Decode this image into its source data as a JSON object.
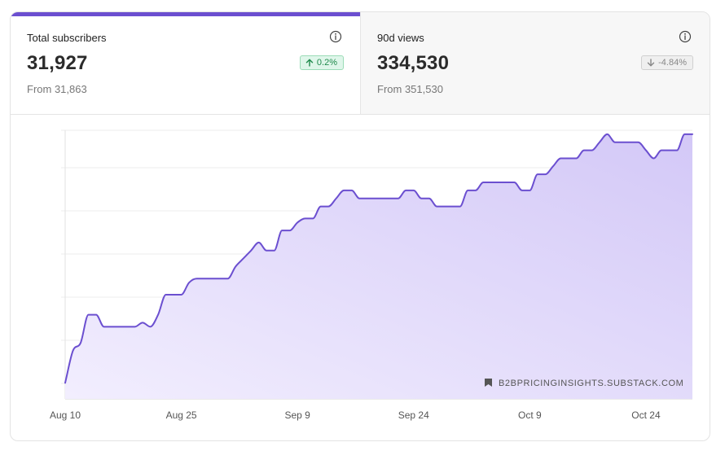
{
  "tabs": [
    {
      "label": "Total subscribers",
      "value": "31,927",
      "from": "From 31,863",
      "change": "0.2%",
      "direction": "up",
      "active": true
    },
    {
      "label": "90d views",
      "value": "334,530",
      "from": "From 351,530",
      "change": "-4.84%",
      "direction": "down",
      "active": false
    }
  ],
  "colors": {
    "accent": "#6b4fd0",
    "area_top": "#d3c8f7",
    "area_bottom": "#f2eefe",
    "badge_up_text": "#1f8a4c",
    "badge_down_text": "#888888"
  },
  "icons": {
    "info": "info-circle-icon",
    "up": "arrow-up-icon",
    "down": "arrow-down-icon",
    "publication": "bookmark-icon"
  },
  "watermark": "B2BPRICINGINSIGHTS.SUBSTACK.COM",
  "chart_data": {
    "type": "area",
    "title": "",
    "xlabel": "",
    "ylabel": "",
    "x_tick_labels": [
      "Aug 10",
      "Aug 25",
      "Sep 9",
      "Sep 24",
      "Oct 9",
      "Oct 24"
    ],
    "x_tick_day_offsets": [
      0,
      15,
      30,
      45,
      60,
      75
    ],
    "grid": "horizontal",
    "y_tick_labels_shown": false,
    "x": [
      "Aug 10",
      "Aug 11",
      "Aug 12",
      "Aug 13",
      "Aug 14",
      "Aug 15",
      "Aug 16",
      "Aug 17",
      "Aug 18",
      "Aug 19",
      "Aug 20",
      "Aug 21",
      "Aug 22",
      "Aug 23",
      "Aug 24",
      "Aug 25",
      "Aug 26",
      "Aug 27",
      "Aug 28",
      "Aug 29",
      "Aug 30",
      "Aug 31",
      "Sep 1",
      "Sep 2",
      "Sep 3",
      "Sep 4",
      "Sep 5",
      "Sep 6",
      "Sep 7",
      "Sep 8",
      "Sep 9",
      "Sep 10",
      "Sep 11",
      "Sep 12",
      "Sep 13",
      "Sep 14",
      "Sep 15",
      "Sep 16",
      "Sep 17",
      "Sep 18",
      "Sep 19",
      "Sep 20",
      "Sep 21",
      "Sep 22",
      "Sep 23",
      "Sep 24",
      "Sep 25",
      "Sep 26",
      "Sep 27",
      "Sep 28",
      "Sep 29",
      "Sep 30",
      "Oct 1",
      "Oct 2",
      "Oct 3",
      "Oct 4",
      "Oct 5",
      "Oct 6",
      "Oct 7",
      "Oct 8",
      "Oct 9",
      "Oct 10",
      "Oct 11",
      "Oct 12",
      "Oct 13",
      "Oct 14",
      "Oct 15",
      "Oct 16",
      "Oct 17",
      "Oct 18",
      "Oct 19",
      "Oct 20",
      "Oct 21",
      "Oct 22",
      "Oct 23",
      "Oct 24",
      "Oct 25",
      "Oct 26",
      "Oct 27",
      "Oct 28",
      "Oct 29",
      "Oct 30"
    ],
    "series": [
      {
        "values": [
          31865,
          31873,
          31875,
          31882,
          31882,
          31879,
          31879,
          31879,
          31879,
          31879,
          31880,
          31879,
          31882,
          31887,
          31887,
          31887,
          31890,
          31891,
          31891,
          31891,
          31891,
          31891,
          31894,
          31896,
          31898,
          31900,
          31898,
          31898,
          31903,
          31903,
          31905,
          31906,
          31906,
          31909,
          31909,
          31911,
          31913,
          31913,
          31911,
          31911,
          31911,
          31911,
          31911,
          31911,
          31913,
          31913,
          31911,
          31911,
          31909,
          31909,
          31909,
          31909,
          31913,
          31913,
          31915,
          31915,
          31915,
          31915,
          31915,
          31913,
          31913,
          31917,
          31917,
          31919,
          31921,
          31921,
          31921,
          31923,
          31923,
          31925,
          31927,
          31925,
          31925,
          31925,
          31925,
          31923,
          31921,
          31923,
          31923,
          31923,
          31927,
          31927
        ]
      }
    ],
    "ylim": [
      31861,
      31928
    ]
  }
}
